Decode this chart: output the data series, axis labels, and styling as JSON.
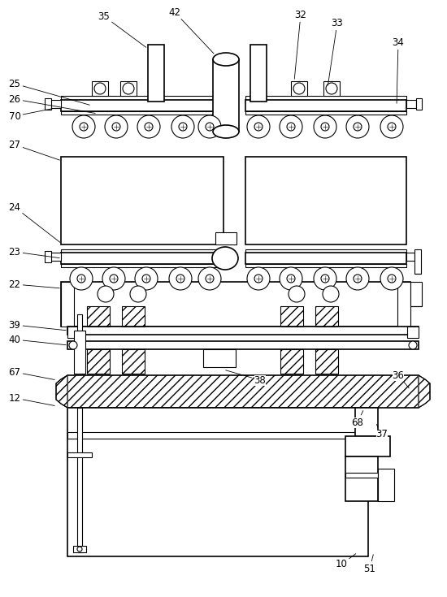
{
  "bg_color": "#ffffff",
  "line_color": "#000000",
  "fig_width": 5.5,
  "fig_height": 7.35,
  "dpi": 100
}
